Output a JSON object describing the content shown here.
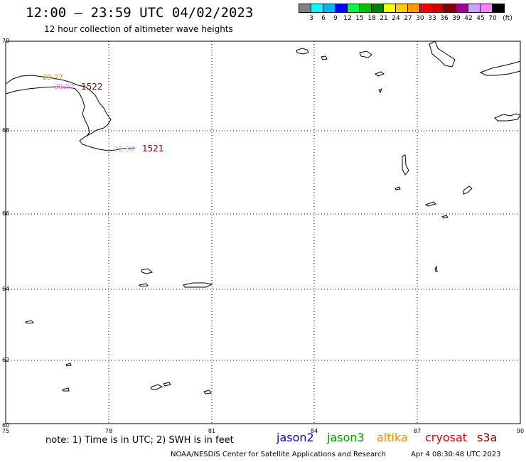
{
  "header": {
    "title": "12:00 – 23:59 UTC 04/02/2023",
    "subtitle": "12 hour collection of altimeter wave heights"
  },
  "colorbar": {
    "colors": [
      "#808080",
      "#00ffff",
      "#00b4ff",
      "#0000ff",
      "#00ff40",
      "#00c000",
      "#008000",
      "#ffff00",
      "#ffcc00",
      "#ff9900",
      "#ff0000",
      "#cc0000",
      "#800000",
      "#a000a0",
      "#d0a0ff",
      "#ff80ff",
      "#000000"
    ],
    "labels": [
      "3",
      "6",
      "9",
      "12",
      "15",
      "18",
      "21",
      "24",
      "27",
      "30",
      "33",
      "36",
      "39",
      "42",
      "45",
      "70",
      "(ft)"
    ]
  },
  "map": {
    "lat_labels": [
      "70",
      "68",
      "66",
      "64",
      "62",
      "60"
    ],
    "lon_labels": [
      "75",
      "78",
      "81",
      "84",
      "87",
      "90"
    ],
    "tracks": [
      {
        "label": "1522",
        "color": "#800000"
      },
      {
        "label": "1521",
        "color": "#800000"
      }
    ],
    "swh_labels": [
      {
        "text": "29.27",
        "color": "#cc9900"
      },
      {
        "text": "29.03",
        "color": "#ff80ff"
      },
      {
        "text": "22.38",
        "color": "#d0a0ff"
      }
    ]
  },
  "footer": {
    "note": "note: 1) Time is in UTC; 2) SWH is in feet",
    "satellites": [
      {
        "name": "jason2",
        "color": "#0000dd"
      },
      {
        "name": "jason3",
        "color": "#009900"
      },
      {
        "name": "altika",
        "color": "#ff8800"
      },
      {
        "name": "cryosat",
        "color": "#dd0000"
      },
      {
        "name": "s3a",
        "color": "#880000"
      }
    ],
    "credit": "NOAA/NESDIS Center for Satellite Applications and Research",
    "generated": "Apr  4 08:30:48 UTC 2023"
  }
}
